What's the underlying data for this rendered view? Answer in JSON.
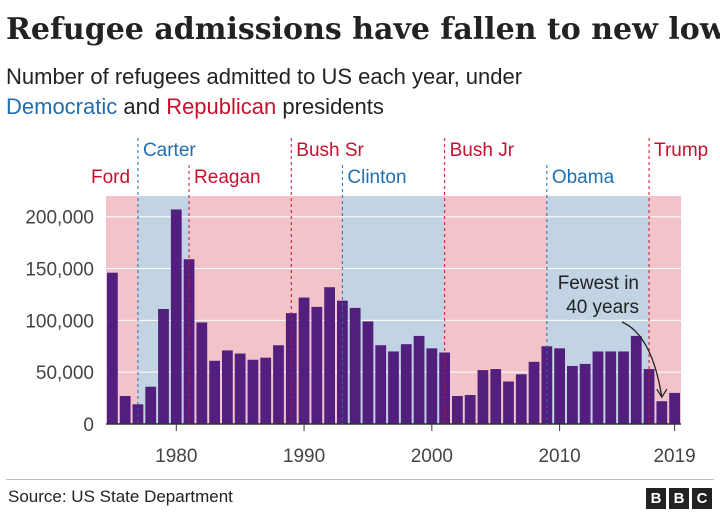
{
  "header": {
    "title": "Refugee admissions have fallen to new lows",
    "subtitle_pre": "Number of refugees admitted to US each year, under",
    "subtitle_dem": "Democratic",
    "subtitle_and": " and ",
    "subtitle_rep": "Republican",
    "subtitle_post": " presidents"
  },
  "colors": {
    "bar": "#531f7e",
    "republican_band": "#f2c4ca",
    "democratic_band": "#c2d4e4",
    "republican_text": "#c8102e",
    "democratic_text": "#1f6fb0"
  },
  "chart_data": {
    "type": "bar",
    "x": [
      1975,
      1976,
      1977,
      1978,
      1979,
      1980,
      1981,
      1982,
      1983,
      1984,
      1985,
      1986,
      1987,
      1988,
      1989,
      1990,
      1991,
      1992,
      1993,
      1994,
      1995,
      1996,
      1997,
      1998,
      1999,
      2000,
      2001,
      2002,
      2003,
      2004,
      2005,
      2006,
      2007,
      2008,
      2009,
      2010,
      2011,
      2012,
      2013,
      2014,
      2015,
      2016,
      2017,
      2018,
      2019
    ],
    "values": [
      146000,
      27000,
      19000,
      36000,
      111000,
      207000,
      159000,
      98000,
      61000,
      71000,
      68000,
      62000,
      64000,
      76000,
      107000,
      122000,
      113000,
      132000,
      119000,
      112000,
      99000,
      76000,
      70000,
      77000,
      85000,
      73000,
      69000,
      27000,
      28000,
      52000,
      53000,
      41000,
      48000,
      60000,
      75000,
      73000,
      56000,
      58000,
      70000,
      70000,
      70000,
      85000,
      53000,
      22000,
      30000
    ],
    "y_ticks": [
      "0",
      "50,000",
      "100,000",
      "150,000",
      "200,000"
    ],
    "y_tick_values": [
      0,
      50000,
      100000,
      150000,
      200000
    ],
    "x_ticks": [
      "1980",
      "1990",
      "2000",
      "2010",
      "2019"
    ],
    "x_tick_values": [
      1980,
      1990,
      2000,
      2010,
      2019
    ],
    "ylim": [
      0,
      220000
    ],
    "grid": true,
    "presidents": [
      {
        "name": "Ford",
        "party": "republican",
        "start": 1974.5
      },
      {
        "name": "Carter",
        "party": "democratic",
        "start": 1977
      },
      {
        "name": "Reagan",
        "party": "republican",
        "start": 1981
      },
      {
        "name": "Bush Sr",
        "party": "republican",
        "start": 1989
      },
      {
        "name": "Clinton",
        "party": "democratic",
        "start": 1993
      },
      {
        "name": "Bush Jr",
        "party": "republican",
        "start": 2001
      },
      {
        "name": "Obama",
        "party": "democratic",
        "start": 2009
      },
      {
        "name": "Trump",
        "party": "republican",
        "start": 2017
      }
    ],
    "annotation": {
      "lines": [
        "Fewest in",
        "40 years"
      ],
      "year": 2018
    }
  },
  "footer": {
    "source": "Source: US State Department",
    "logo": [
      "B",
      "B",
      "C"
    ]
  }
}
